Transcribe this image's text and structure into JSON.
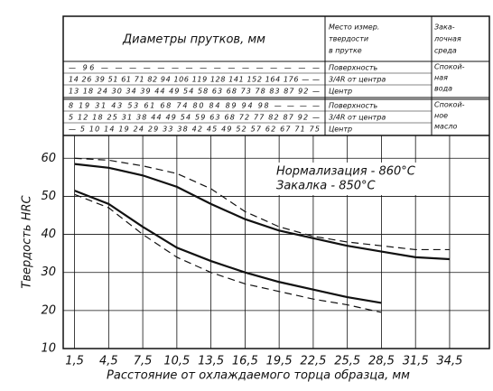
{
  "chart_data": {
    "type": "line",
    "y_label": "Твердость HRC",
    "x_label": "Расстояние от охлаждаемого торца образца, мм",
    "annotations": [
      "Нормализация - 860°C",
      "Закалка - 850°C"
    ],
    "x": [
      1.5,
      4.5,
      7.5,
      10.5,
      13.5,
      16.5,
      19.5,
      22.5,
      25.5,
      28.5,
      31.5,
      34.5
    ],
    "series": [
      {
        "color": "#111",
        "dashed": false,
        "values": [
          58.5,
          57.5,
          55.5,
          52.5,
          48,
          44,
          41,
          39,
          37,
          35.5,
          34,
          33.5
        ]
      },
      {
        "color": "#111",
        "dashed": true,
        "values": [
          60,
          59.5,
          58,
          56,
          52,
          46,
          42,
          39.5,
          38,
          37,
          36,
          36
        ]
      },
      {
        "color": "#111",
        "dashed": false,
        "values": [
          51.5,
          48,
          42,
          36.5,
          33,
          30,
          27.5,
          25.5,
          23.5,
          22,
          null,
          null
        ]
      },
      {
        "color": "#111",
        "dashed": true,
        "values": [
          50.5,
          47,
          40,
          34,
          30,
          27,
          25,
          23,
          21.5,
          19.5,
          null,
          null
        ]
      }
    ],
    "xlim": [
      0.5,
      38
    ],
    "ylim": [
      10,
      66
    ],
    "xticks": [
      {
        "value": 1.5,
        "label": "1,5"
      },
      {
        "value": 4.5,
        "label": "4,5"
      },
      {
        "value": 7.5,
        "label": "7,5"
      },
      {
        "value": 10.5,
        "label": "10,5"
      },
      {
        "value": 13.5,
        "label": "13,5"
      },
      {
        "value": 16.5,
        "label": "16,5"
      },
      {
        "value": 19.5,
        "label": "19,5"
      },
      {
        "value": 22.5,
        "label": "22,5"
      },
      {
        "value": 25.5,
        "label": "25,5"
      },
      {
        "value": 28.5,
        "label": "28,5"
      },
      {
        "value": 31.5,
        "label": "31,5"
      },
      {
        "value": 34.5,
        "label": "34,5"
      }
    ],
    "yticks": [
      10,
      20,
      30,
      40,
      50,
      60
    ],
    "grid": true
  },
  "table": {
    "headers": [
      "Диаметры прутков, мм",
      [
        "Место измер.",
        "твердости",
        "в прутке"
      ],
      [
        "Зака-",
        "лочная",
        "среда"
      ]
    ],
    "groups": [
      {
        "medium": [
          "Спокой-",
          "ная",
          "вода"
        ],
        "rows": [
          {
            "diameters": "— 96 — — — — — — — — — — — — — — — —",
            "place": "Поверхность"
          },
          {
            "diameters": "14 26 39 51 61 71 82 94 106 119 128 141 152 164 176 — —",
            "place": "3/4R от центра"
          },
          {
            "diameters": "13 18 24 30 34 39 44 49 54 58 63 68 73 78 83 87 92 —",
            "place": "Центр"
          }
        ]
      },
      {
        "medium": [
          "Спокой-",
          "ное",
          "масло"
        ],
        "rows": [
          {
            "diameters": "8 19 31 43 53 61 68 74 80 84 89 94 98 — — — —",
            "place": "Поверхность"
          },
          {
            "diameters": "5 12 18 25 31 38 44 49 54 59 63 68 72 77 82 87 92 —",
            "place": "3/4R от центра"
          },
          {
            "diameters": "— 5 10 14 19 24 29 33 38 42 45 49 52 57 62 67 71 75",
            "place": "Центр"
          }
        ]
      }
    ]
  }
}
